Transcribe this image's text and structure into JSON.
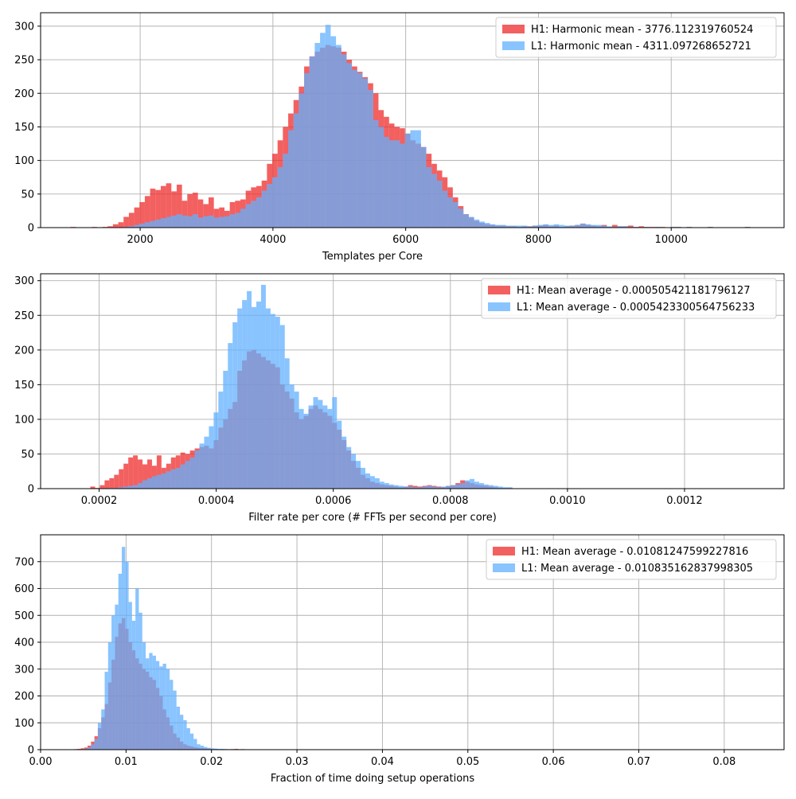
{
  "colors": {
    "h1": "#ef2b2b",
    "l1": "#62b0ff",
    "overlap": "#8a8ac8",
    "grid": "#b0b0b0",
    "axis": "#000000"
  },
  "chart_data": [
    {
      "type": "histogram",
      "xlabel": "Templates per Core",
      "xlim": [
        500,
        11700
      ],
      "ylim": [
        0,
        320
      ],
      "xticks": [
        2000,
        4000,
        6000,
        8000,
        10000
      ],
      "xtick_labels": [
        "2000",
        "4000",
        "6000",
        "8000",
        "10000"
      ],
      "yticks": [
        0,
        50,
        100,
        150,
        200,
        250,
        300
      ],
      "ytick_labels": [
        "0",
        "50",
        "100",
        "150",
        "200",
        "250",
        "300"
      ],
      "grid": true,
      "legend_position": "upper right",
      "bin_start": 950,
      "bin_width": 80,
      "series": [
        {
          "name": "H1: Harmonic mean  - 3776.112319760524",
          "color_key": "h1",
          "values": [
            1,
            0,
            0,
            0,
            1,
            0,
            1,
            2,
            5,
            8,
            16,
            22,
            30,
            38,
            47,
            58,
            56,
            62,
            66,
            54,
            64,
            40,
            50,
            52,
            42,
            35,
            45,
            28,
            30,
            25,
            38,
            40,
            42,
            55,
            60,
            62,
            70,
            95,
            110,
            130,
            150,
            170,
            190,
            210,
            240,
            255,
            262,
            268,
            272,
            270,
            268,
            262,
            250,
            240,
            232,
            224,
            215,
            200,
            175,
            165,
            155,
            150,
            148,
            140,
            130,
            125,
            120,
            110,
            95,
            85,
            75,
            60,
            45,
            32,
            20,
            15,
            10,
            7,
            5,
            4,
            3,
            3,
            2,
            2,
            1,
            2,
            2,
            3,
            3,
            4,
            2,
            3,
            1,
            2,
            3,
            4,
            6,
            4,
            3,
            2,
            4,
            1,
            4,
            2,
            2,
            3,
            1,
            2,
            1,
            1,
            1,
            1,
            0,
            1,
            1,
            0,
            1,
            0,
            0,
            0,
            1,
            0,
            0,
            0,
            0,
            0,
            0,
            1
          ]
        },
        {
          "name": "L1: Harmonic mean  - 4311.097268652721",
          "color_key": "l1",
          "values": [
            0,
            0,
            0,
            0,
            0,
            0,
            0,
            0,
            0,
            0,
            1,
            2,
            4,
            6,
            8,
            10,
            12,
            14,
            16,
            18,
            20,
            18,
            17,
            20,
            15,
            17,
            18,
            15,
            16,
            17,
            20,
            22,
            28,
            35,
            40,
            45,
            55,
            65,
            75,
            90,
            110,
            145,
            170,
            200,
            230,
            255,
            275,
            290,
            302,
            285,
            272,
            258,
            245,
            235,
            230,
            222,
            205,
            160,
            150,
            135,
            130,
            130,
            125,
            140,
            145,
            145,
            120,
            90,
            80,
            70,
            55,
            45,
            38,
            28,
            20,
            16,
            12,
            9,
            7,
            5,
            4,
            4,
            3,
            3,
            3,
            3,
            2,
            3,
            4,
            5,
            4,
            5,
            4,
            3,
            3,
            4,
            6,
            5,
            4,
            4,
            3,
            2,
            1,
            2,
            2,
            1,
            1,
            0,
            1,
            0,
            1,
            0,
            0,
            1,
            1,
            0,
            1,
            0,
            0,
            0,
            1,
            0,
            0,
            0,
            0,
            0,
            0,
            1
          ]
        }
      ]
    },
    {
      "type": "histogram",
      "xlabel": "Filter rate per core (# FFTs per second per core)",
      "xlim": [
        0.0001,
        0.00137
      ],
      "ylim": [
        0,
        310
      ],
      "xticks": [
        0.0002,
        0.0004,
        0.0006,
        0.0008,
        0.001,
        0.0012
      ],
      "xtick_labels": [
        "0.0002",
        "0.0004",
        "0.0006",
        "0.0008",
        "0.0010",
        "0.0012"
      ],
      "yticks": [
        0,
        50,
        100,
        150,
        200,
        250,
        300
      ],
      "ytick_labels": [
        "0",
        "50",
        "100",
        "150",
        "200",
        "250",
        "300"
      ],
      "grid": true,
      "legend_position": "upper right",
      "bin_start": 0.000185,
      "bin_width": 8.1e-06,
      "series": [
        {
          "name": "H1: Mean average - 0.000505421181796127",
          "color_key": "h1",
          "values": [
            3,
            1,
            5,
            12,
            15,
            20,
            28,
            36,
            45,
            48,
            42,
            35,
            42,
            33,
            48,
            30,
            36,
            45,
            48,
            52,
            50,
            55,
            58,
            60,
            62,
            58,
            70,
            88,
            100,
            115,
            125,
            170,
            185,
            198,
            200,
            195,
            190,
            185,
            180,
            175,
            150,
            140,
            130,
            110,
            100,
            105,
            115,
            120,
            115,
            110,
            105,
            95,
            85,
            70,
            55,
            40,
            30,
            20,
            15,
            10,
            8,
            6,
            5,
            4,
            3,
            2,
            3,
            5,
            4,
            3,
            4,
            5,
            4,
            3,
            2,
            4,
            5,
            8,
            12,
            10,
            8,
            6,
            5,
            4,
            3,
            2,
            1,
            1,
            1
          ]
        },
        {
          "name": "L1: Mean average - 0.0005423300564756233",
          "color_key": "l1",
          "values": [
            0,
            0,
            0,
            0,
            1,
            1,
            2,
            3,
            4,
            5,
            8,
            12,
            15,
            18,
            20,
            22,
            25,
            28,
            30,
            35,
            40,
            45,
            55,
            65,
            75,
            90,
            110,
            140,
            170,
            210,
            240,
            260,
            272,
            285,
            262,
            270,
            294,
            260,
            252,
            248,
            236,
            188,
            150,
            140,
            115,
            108,
            120,
            132,
            128,
            120,
            115,
            132,
            98,
            75,
            60,
            50,
            40,
            30,
            22,
            18,
            15,
            10,
            8,
            6,
            5,
            4,
            3,
            3,
            2,
            2,
            3,
            4,
            3,
            2,
            3,
            4,
            5,
            6,
            8,
            12,
            14,
            10,
            8,
            6,
            5,
            4,
            3,
            2,
            2
          ]
        }
      ]
    },
    {
      "type": "histogram",
      "xlabel": "Fraction of time doing setup operations",
      "xlim": [
        0,
        0.087
      ],
      "ylim": [
        0,
        800
      ],
      "xticks": [
        0,
        0.01,
        0.02,
        0.03,
        0.04,
        0.05,
        0.06,
        0.07,
        0.08
      ],
      "xtick_labels": [
        "0.00",
        "0.01",
        "0.02",
        "0.03",
        "0.04",
        "0.05",
        "0.06",
        "0.07",
        "0.08"
      ],
      "yticks": [
        0,
        100,
        200,
        300,
        400,
        500,
        600,
        700
      ],
      "ytick_labels": [
        "0",
        "100",
        "200",
        "300",
        "400",
        "500",
        "600",
        "700"
      ],
      "grid": true,
      "legend_position": "upper right",
      "bin_start": 0.0039,
      "bin_width": 0.0004,
      "series": [
        {
          "name": "H1: Mean average - 0.01081247599227816",
          "color_key": "h1",
          "values": [
            2,
            3,
            5,
            8,
            15,
            30,
            50,
            80,
            120,
            170,
            250,
            335,
            420,
            470,
            490,
            450,
            400,
            370,
            340,
            320,
            300,
            290,
            270,
            260,
            230,
            200,
            150,
            120,
            90,
            60,
            45,
            30,
            20,
            15,
            12,
            9,
            7,
            6,
            5,
            4,
            3,
            3,
            2,
            2,
            2,
            1,
            2,
            3,
            1,
            2,
            1,
            1,
            1,
            1,
            1,
            1,
            1,
            1,
            1,
            1,
            1,
            1,
            1,
            1,
            1,
            1,
            1,
            1,
            1,
            1,
            1,
            1,
            0,
            1,
            0,
            0,
            0,
            0,
            0,
            0,
            0,
            0,
            0,
            1,
            0,
            0,
            0,
            0,
            0,
            0,
            0,
            0,
            0,
            0,
            0,
            0,
            0,
            0,
            0,
            0,
            0,
            0,
            0,
            0,
            0,
            0,
            0,
            0,
            0,
            0,
            0,
            0,
            0,
            0,
            0,
            0,
            0,
            0,
            0,
            0,
            0,
            0,
            0,
            0,
            0,
            0,
            0,
            0,
            0,
            0,
            0,
            0,
            0,
            0,
            0,
            0,
            0,
            0,
            0,
            0,
            0,
            0,
            0,
            0,
            0,
            0,
            0,
            1,
            0,
            0,
            0,
            0,
            0,
            0,
            0,
            0,
            0,
            0,
            0,
            0,
            0,
            0,
            0,
            0,
            0,
            0,
            0,
            0,
            0,
            0,
            0,
            0,
            0,
            0,
            0,
            0,
            0,
            0,
            0,
            0,
            0,
            0,
            0,
            0,
            0,
            0,
            0,
            0,
            0,
            0,
            0,
            0,
            0,
            0,
            0,
            0,
            0,
            0
          ]
        },
        {
          "name": "L1: Mean average - 0.010835162837998305",
          "color_key": "l1",
          "values": [
            0,
            1,
            2,
            4,
            8,
            20,
            40,
            100,
            150,
            290,
            400,
            500,
            540,
            655,
            755,
            700,
            550,
            480,
            600,
            510,
            400,
            340,
            360,
            350,
            330,
            310,
            320,
            300,
            260,
            220,
            160,
            130,
            110,
            80,
            60,
            40,
            20,
            15,
            10,
            7,
            5,
            4,
            3,
            3,
            2,
            2,
            2,
            1,
            2,
            1,
            1,
            1,
            1,
            1,
            1,
            1,
            1,
            1,
            1,
            1,
            1,
            1,
            1,
            1,
            1,
            1,
            1,
            1,
            1,
            1,
            1,
            1,
            0,
            1,
            0,
            0,
            0,
            0,
            0,
            0,
            0,
            0,
            0,
            1,
            0,
            0,
            0,
            0,
            0,
            0,
            0,
            0,
            0,
            0,
            0,
            0,
            0,
            0,
            0,
            0,
            0,
            0,
            0,
            0,
            0,
            0,
            0,
            0,
            0,
            0,
            0,
            0,
            0,
            0,
            0,
            0,
            0,
            0,
            0,
            0,
            0,
            0,
            0,
            0,
            0,
            0,
            0,
            0,
            0,
            0,
            0,
            0,
            0,
            0,
            0,
            0,
            0,
            0,
            0,
            0,
            0,
            0,
            0,
            0,
            0,
            0,
            0,
            0,
            0,
            0,
            0,
            0,
            0,
            0,
            0,
            0,
            0,
            0,
            0,
            0,
            0,
            0,
            0,
            0,
            0,
            0,
            0,
            0,
            0,
            0,
            0,
            0,
            0,
            0,
            0,
            0,
            0,
            0,
            0,
            0,
            0,
            0,
            0,
            0,
            0,
            0,
            0,
            0,
            0,
            0,
            0,
            0,
            0,
            0,
            0,
            0,
            0,
            0,
            0,
            0,
            0,
            0,
            0,
            1
          ]
        }
      ]
    }
  ]
}
